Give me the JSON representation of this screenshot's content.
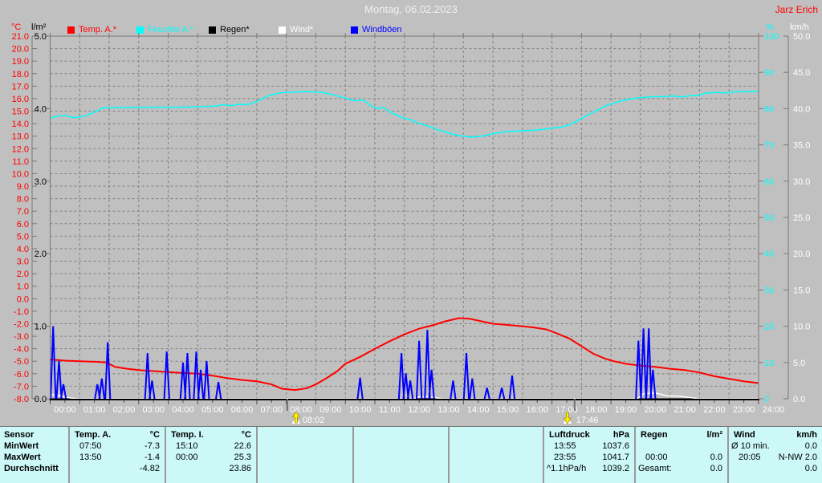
{
  "header": {
    "title": "Montag, 06.02.2023",
    "station": "Jarz Erich"
  },
  "axis_units": {
    "temp": "°C",
    "rain": "l/m²",
    "humidity": "%",
    "wind": "km/h"
  },
  "legend": {
    "items": [
      {
        "key": "temp-a",
        "label": "Temp. A.*",
        "color": "#ff0000"
      },
      {
        "key": "feuchte-a",
        "label": "Feuchte A.*",
        "color": "#00ffff"
      },
      {
        "key": "regen",
        "label": "Regen*",
        "color": "#000000"
      },
      {
        "key": "wind",
        "label": "Wind*",
        "color": "#ffffff"
      },
      {
        "key": "windboeen",
        "label": "Windböen",
        "color": "#0000ff"
      }
    ]
  },
  "chart_data": {
    "type": "line",
    "title": "Montag, 06.02.2023",
    "grid": true,
    "x": {
      "min": 0,
      "max": 24,
      "unit": "h"
    },
    "x_tick_labels": [
      "00:00",
      "01:00",
      "02:00",
      "03:00",
      "04:00",
      "05:00",
      "06:00",
      "07:00",
      "08:00",
      "09:00",
      "10:00",
      "11:00",
      "12:00",
      "13:00",
      "14:00",
      "15:00",
      "16:00",
      "17:00",
      "18:00",
      "19:00",
      "20:00",
      "21:00",
      "22:00",
      "23:00",
      "24:00"
    ],
    "axes": {
      "temp_c": {
        "side": "left",
        "unit": "°C",
        "color": "#ff0000",
        "min": -8,
        "max": 21,
        "step": 1,
        "decimals": 1
      },
      "rain_lm2": {
        "side": "left",
        "unit": "l/m²",
        "color": "#000000",
        "min": 0,
        "max": 5,
        "step": 1,
        "decimals": 1
      },
      "humidity_pct": {
        "side": "right",
        "unit": "%",
        "color": "#00ffff",
        "min": 0,
        "max": 100,
        "step": 10,
        "decimals": 0
      },
      "wind_kmh": {
        "side": "right",
        "unit": "km/h",
        "color": "#ffffff",
        "min": 0,
        "max": 50,
        "step": 5,
        "decimals": 1
      }
    },
    "series": [
      {
        "name": "Feuchte A.*",
        "axis": "humidity_pct",
        "color": "#00ffff",
        "width": 1.5,
        "points": [
          [
            0,
            77.3
          ],
          [
            0.2,
            77.9
          ],
          [
            0.5,
            78.1
          ],
          [
            0.8,
            77.5
          ],
          [
            1.1,
            77.8
          ],
          [
            1.4,
            78.7
          ],
          [
            1.8,
            80.2
          ],
          [
            2.3,
            80.3
          ],
          [
            3.0,
            80.3
          ],
          [
            3.8,
            80.4
          ],
          [
            4.5,
            80.4
          ],
          [
            5.2,
            80.6
          ],
          [
            5.6,
            80.7
          ],
          [
            5.9,
            81.1
          ],
          [
            6.1,
            80.8
          ],
          [
            6.4,
            81.2
          ],
          [
            6.7,
            81.1
          ],
          [
            7.0,
            82.0
          ],
          [
            7.4,
            83.6
          ],
          [
            7.8,
            84.4
          ],
          [
            8.3,
            84.6
          ],
          [
            8.8,
            84.7
          ],
          [
            9.2,
            84.5
          ],
          [
            9.6,
            83.8
          ],
          [
            10.0,
            82.9
          ],
          [
            10.3,
            82.2
          ],
          [
            10.6,
            82.4
          ],
          [
            10.9,
            80.6
          ],
          [
            11.1,
            80.0
          ],
          [
            11.3,
            80.3
          ],
          [
            11.6,
            78.7
          ],
          [
            12.0,
            77.3
          ],
          [
            12.2,
            77.0
          ],
          [
            12.4,
            76.2
          ],
          [
            12.8,
            75.2
          ],
          [
            13.2,
            74.0
          ],
          [
            13.6,
            73.0
          ],
          [
            14.0,
            72.4
          ],
          [
            14.3,
            72.1
          ],
          [
            14.6,
            72.4
          ],
          [
            15.0,
            73.1
          ],
          [
            15.4,
            73.6
          ],
          [
            16.0,
            73.9
          ],
          [
            16.5,
            74.1
          ],
          [
            17.0,
            74.6
          ],
          [
            17.3,
            74.9
          ],
          [
            17.6,
            75.5
          ],
          [
            18.0,
            77.3
          ],
          [
            18.4,
            79.0
          ],
          [
            18.8,
            80.7
          ],
          [
            19.2,
            81.8
          ],
          [
            19.6,
            82.6
          ],
          [
            20.0,
            83.0
          ],
          [
            20.4,
            83.3
          ],
          [
            20.8,
            83.3
          ],
          [
            21.1,
            83.5
          ],
          [
            21.4,
            83.2
          ],
          [
            21.7,
            83.6
          ],
          [
            22.0,
            83.7
          ],
          [
            22.2,
            84.3
          ],
          [
            22.6,
            84.5
          ],
          [
            22.9,
            84.3
          ],
          [
            23.1,
            84.6
          ],
          [
            23.5,
            84.7
          ],
          [
            24.0,
            84.8
          ]
        ]
      },
      {
        "name": "Temp. A.*",
        "axis": "temp_c",
        "color": "#ff0000",
        "width": 2,
        "points": [
          [
            0,
            -4.85
          ],
          [
            0.5,
            -4.95
          ],
          [
            1.0,
            -5.0
          ],
          [
            1.6,
            -5.05
          ],
          [
            1.9,
            -5.1
          ],
          [
            2.2,
            -5.45
          ],
          [
            2.6,
            -5.6
          ],
          [
            3.0,
            -5.7
          ],
          [
            3.6,
            -5.8
          ],
          [
            4.2,
            -5.9
          ],
          [
            5.0,
            -6.0
          ],
          [
            5.5,
            -6.15
          ],
          [
            6.0,
            -6.35
          ],
          [
            6.5,
            -6.5
          ],
          [
            7.0,
            -6.6
          ],
          [
            7.5,
            -6.85
          ],
          [
            7.85,
            -7.2
          ],
          [
            8.3,
            -7.3
          ],
          [
            8.7,
            -7.15
          ],
          [
            9.0,
            -6.85
          ],
          [
            9.4,
            -6.3
          ],
          [
            9.75,
            -5.75
          ],
          [
            10.0,
            -5.2
          ],
          [
            10.5,
            -4.65
          ],
          [
            11.0,
            -4.0
          ],
          [
            11.5,
            -3.4
          ],
          [
            12.0,
            -2.85
          ],
          [
            12.5,
            -2.4
          ],
          [
            13.0,
            -2.1
          ],
          [
            13.4,
            -1.8
          ],
          [
            13.85,
            -1.55
          ],
          [
            14.2,
            -1.6
          ],
          [
            14.6,
            -1.8
          ],
          [
            15.0,
            -2.0
          ],
          [
            15.5,
            -2.1
          ],
          [
            16.0,
            -2.2
          ],
          [
            16.4,
            -2.3
          ],
          [
            16.8,
            -2.45
          ],
          [
            17.2,
            -2.8
          ],
          [
            17.6,
            -3.2
          ],
          [
            18.0,
            -3.8
          ],
          [
            18.4,
            -4.4
          ],
          [
            18.8,
            -4.8
          ],
          [
            19.1,
            -5.0
          ],
          [
            19.5,
            -5.2
          ],
          [
            20.0,
            -5.35
          ],
          [
            20.5,
            -5.45
          ],
          [
            21.0,
            -5.6
          ],
          [
            21.5,
            -5.7
          ],
          [
            22.0,
            -5.9
          ],
          [
            22.5,
            -6.2
          ],
          [
            23.0,
            -6.4
          ],
          [
            23.5,
            -6.6
          ],
          [
            24.0,
            -6.75
          ]
        ]
      },
      {
        "name": "Regen*",
        "axis": "rain_lm2",
        "color": "#000000",
        "width": 1,
        "points": [
          [
            0,
            0
          ],
          [
            24,
            0
          ]
        ]
      },
      {
        "name": "Wind*",
        "axis": "wind_kmh",
        "color": "#ffffff",
        "width": 1.5,
        "points": [
          [
            0,
            0.5
          ],
          [
            0.2,
            0.6
          ],
          [
            0.4,
            0.3
          ],
          [
            0.7,
            0.1
          ],
          [
            1.0,
            0
          ],
          [
            12.3,
            0
          ],
          [
            12.5,
            0.25
          ],
          [
            12.8,
            0.3
          ],
          [
            13.1,
            0.1
          ],
          [
            13.3,
            0
          ],
          [
            19.9,
            0
          ],
          [
            20.1,
            0.7
          ],
          [
            20.5,
            0.8
          ],
          [
            20.9,
            0.4
          ],
          [
            21.3,
            0.35
          ],
          [
            21.7,
            0.15
          ],
          [
            22.0,
            0
          ],
          [
            24,
            0
          ]
        ]
      },
      {
        "name": "Windböen",
        "axis": "wind_kmh",
        "color": "#0000ff",
        "width": 2,
        "spikes": [
          [
            0.1,
            10.0
          ],
          [
            0.3,
            5.2
          ],
          [
            0.45,
            2.0
          ],
          [
            1.6,
            2.0
          ],
          [
            1.75,
            2.8
          ],
          [
            1.95,
            7.8
          ],
          [
            3.3,
            6.3
          ],
          [
            3.45,
            2.5
          ],
          [
            3.95,
            6.5
          ],
          [
            4.5,
            5.0
          ],
          [
            4.65,
            6.3
          ],
          [
            4.95,
            6.5
          ],
          [
            5.1,
            4.0
          ],
          [
            5.3,
            5.2
          ],
          [
            5.7,
            2.3
          ],
          [
            10.5,
            2.9
          ],
          [
            11.9,
            6.3
          ],
          [
            12.05,
            3.5
          ],
          [
            12.2,
            2.5
          ],
          [
            12.5,
            8.0
          ],
          [
            12.78,
            9.5
          ],
          [
            12.92,
            4.0
          ],
          [
            13.65,
            2.5
          ],
          [
            14.1,
            6.3
          ],
          [
            14.3,
            2.8
          ],
          [
            14.8,
            1.5
          ],
          [
            15.3,
            1.5
          ],
          [
            15.65,
            3.2
          ],
          [
            19.93,
            8.0
          ],
          [
            20.1,
            9.7
          ],
          [
            20.28,
            9.7
          ],
          [
            20.42,
            4.0
          ]
        ]
      }
    ],
    "markers": [
      {
        "kind": "sunrise",
        "label": "08:02",
        "t": 8.033
      },
      {
        "kind": "sunset",
        "label": "17:46",
        "t": 17.767
      }
    ]
  },
  "summary": {
    "row_labels": [
      "Sensor",
      "MinWert",
      "MaxWert",
      "Durchschnitt"
    ],
    "columns": [
      {
        "name": "Temp. A.",
        "unit": "°C",
        "rows": [
          [
            "07:50",
            "-7.3"
          ],
          [
            "13:50",
            "-1.4"
          ],
          [
            "",
            "-4.82"
          ]
        ]
      },
      {
        "name": "Temp. I.",
        "unit": "°C",
        "rows": [
          [
            "15:10",
            "22.6"
          ],
          [
            "00:00",
            "25.3"
          ],
          [
            "",
            "23.86"
          ]
        ]
      },
      {
        "name": "",
        "unit": "",
        "rows": [
          [
            "",
            ""
          ],
          [
            "",
            ""
          ],
          [
            "",
            ""
          ]
        ]
      },
      {
        "name": "",
        "unit": "",
        "rows": [
          [
            "",
            ""
          ],
          [
            "",
            ""
          ],
          [
            "",
            ""
          ]
        ]
      },
      {
        "name": "",
        "unit": "",
        "rows": [
          [
            "",
            ""
          ],
          [
            "",
            ""
          ],
          [
            "",
            ""
          ]
        ]
      },
      {
        "name": "Luftdruck",
        "unit": "hPa",
        "rows": [
          [
            "13:55",
            "1037.6"
          ],
          [
            "23:55",
            "1041.7"
          ],
          [
            "^1.1hPa/h",
            "1039.2"
          ]
        ]
      },
      {
        "name": "Regen",
        "unit": "l/m²",
        "rows": [
          [
            "",
            ""
          ],
          [
            "00:00",
            "0.0"
          ],
          [
            "Gesamt:",
            "0.0"
          ]
        ]
      },
      {
        "name": "Wind",
        "unit": "km/h",
        "rows": [
          [
            "Ø 10 min.",
            "0.0"
          ],
          [
            "20:05",
            "N-NW 2.0"
          ],
          [
            "",
            "0.0"
          ]
        ]
      }
    ]
  }
}
